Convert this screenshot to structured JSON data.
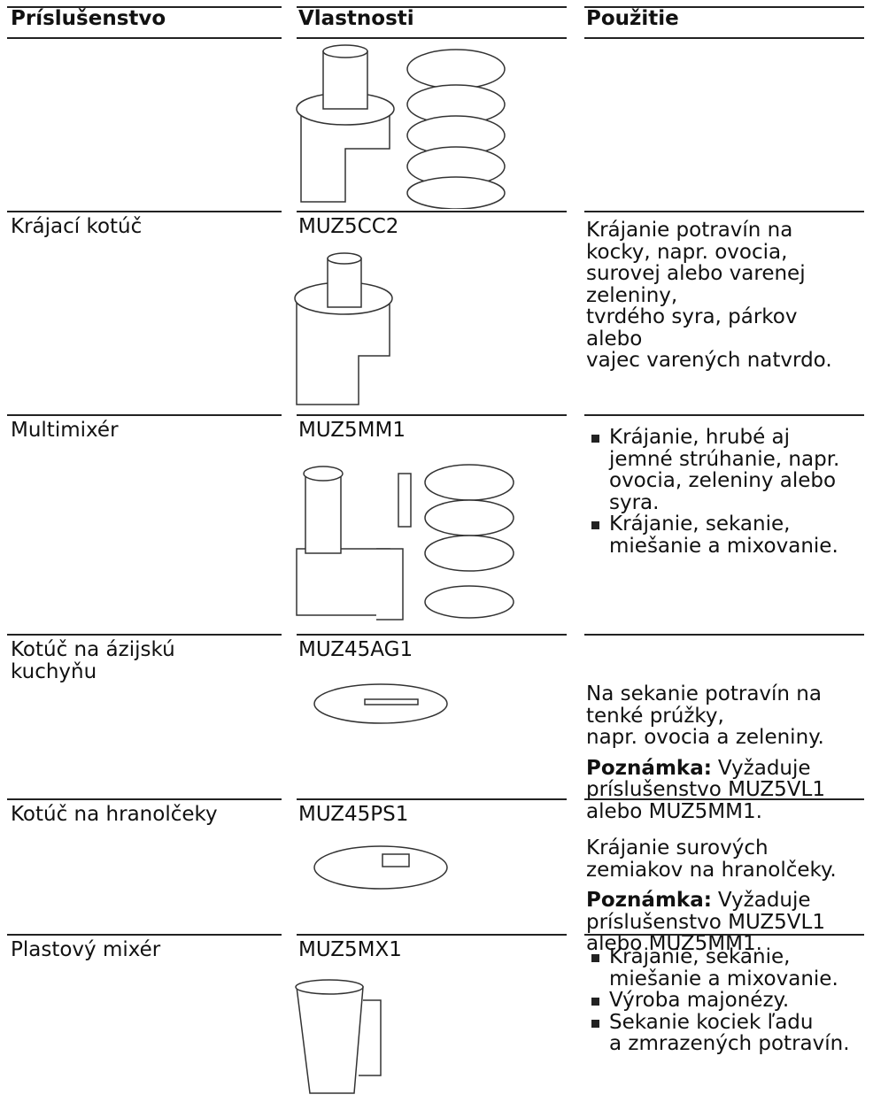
{
  "header": {
    "columns": [
      "Príslušenstvo",
      "Vlastnosti",
      "Použitie"
    ]
  },
  "rows": [
    {},
    {
      "accessory": [
        "Krájací kotúč"
      ],
      "code": "MUZ5CC2",
      "paragraphs": [
        [
          "Krájanie potravín na",
          "kocky, napr. ovocia,",
          "surovej alebo varenej",
          "zeleniny,",
          "tvrdého syra, párkov",
          "alebo",
          "vajec varených natvrdo."
        ]
      ]
    },
    {
      "accessory": [
        "Multimixér"
      ],
      "code": "MUZ5MM1",
      "bullets": [
        [
          "Krájanie, hrubé aj",
          "jemné strúhanie, napr.",
          "ovocia, zeleniny alebo",
          "syra."
        ],
        [
          "Krájanie, sekanie,",
          "miešanie a mixovanie."
        ]
      ]
    },
    {
      "accessory": [
        "Kotúč na ázijskú",
        "kuchyňu"
      ],
      "code": "MUZ45AG1",
      "paragraphs": [
        [
          "Na sekanie potravín na",
          "tenké prúžky,",
          "napr. ovocia a zeleniny."
        ]
      ],
      "notes": [
        {
          "label": "Poznámka:",
          "lines": [
            "Vyžaduje",
            "príslušenstvo MUZ5VL1",
            "alebo MUZ5MM1."
          ]
        }
      ]
    },
    {
      "accessory": [
        "Kotúč na hranolčeky"
      ],
      "code": "MUZ45PS1",
      "paragraphs": [
        [
          "Krájanie surových",
          "zemiakov na hranolčeky."
        ]
      ],
      "notes": [
        {
          "label": "Poznámka:",
          "lines": [
            "Vyžaduje",
            "príslušenstvo MUZ5VL1",
            "alebo MUZ5MM1."
          ]
        }
      ]
    },
    {
      "accessory": [
        "Plastový mixér"
      ],
      "code": "MUZ5MX1",
      "bullets": [
        [
          "Krájanie, sekanie,",
          "miešanie a mixovanie."
        ],
        [
          "Výroba majonézy."
        ],
        [
          "Sekanie kociek ľadu",
          "a zmrazených potravín."
        ]
      ]
    }
  ]
}
